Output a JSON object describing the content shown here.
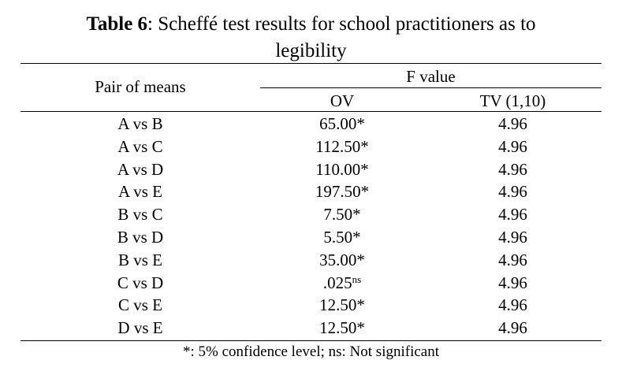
{
  "title": {
    "label": "Table 6",
    "separator": ":",
    "text_line1": "Scheffé test results for school practitioners as to",
    "text_line2": "legibility"
  },
  "header": {
    "col1": "Pair of means",
    "group": "F value",
    "col2": "OV",
    "col3": "TV (1,10)"
  },
  "rows": [
    {
      "pair": "A vs B",
      "ov": "65.00*",
      "ov_sup": "",
      "tv": "4.96"
    },
    {
      "pair": "A vs C",
      "ov": "112.50*",
      "ov_sup": "",
      "tv": "4.96"
    },
    {
      "pair": "A vs D",
      "ov": "110.00*",
      "ov_sup": "",
      "tv": "4.96"
    },
    {
      "pair": "A vs E",
      "ov": "197.50*",
      "ov_sup": "",
      "tv": "4.96"
    },
    {
      "pair": "B vs C",
      "ov": "7.50*",
      "ov_sup": "",
      "tv": "4.96"
    },
    {
      "pair": "B vs D",
      "ov": "5.50*",
      "ov_sup": "",
      "tv": "4.96"
    },
    {
      "pair": "B vs E",
      "ov": "35.00*",
      "ov_sup": "",
      "tv": "4.96"
    },
    {
      "pair": "C vs D",
      "ov": ".025",
      "ov_sup": "ns",
      "tv": "4.96"
    },
    {
      "pair": "C vs E",
      "ov": "12.50*",
      "ov_sup": "",
      "tv": "4.96"
    },
    {
      "pair": "D vs E",
      "ov": "12.50*",
      "ov_sup": "",
      "tv": "4.96"
    }
  ],
  "footnote": "*: 5% confidence level; ns: Not significant"
}
